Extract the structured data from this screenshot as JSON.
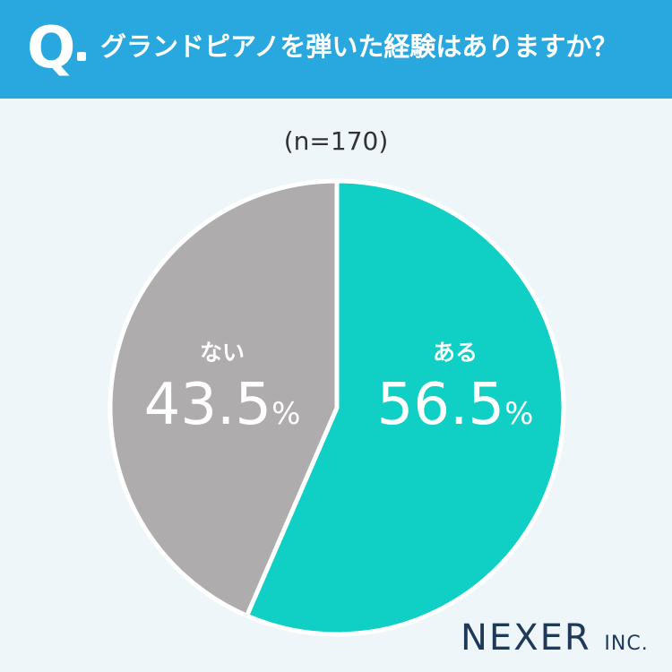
{
  "header": {
    "q_mark": "Q",
    "question": "グランドピアノを弾いた経験はありますか？"
  },
  "sample_label": "(n=170)",
  "chart_data": {
    "type": "pie",
    "categories": [
      "ある",
      "ない"
    ],
    "values": [
      56.5,
      43.5
    ],
    "value_labels": [
      "56.5",
      "43.5"
    ],
    "unit": "%",
    "colors": [
      "#10cfc4",
      "#aeacad"
    ],
    "start": "12 o'clock",
    "direction": "clockwise"
  },
  "logo": {
    "main": "NEXER",
    "suffix": "INC."
  }
}
